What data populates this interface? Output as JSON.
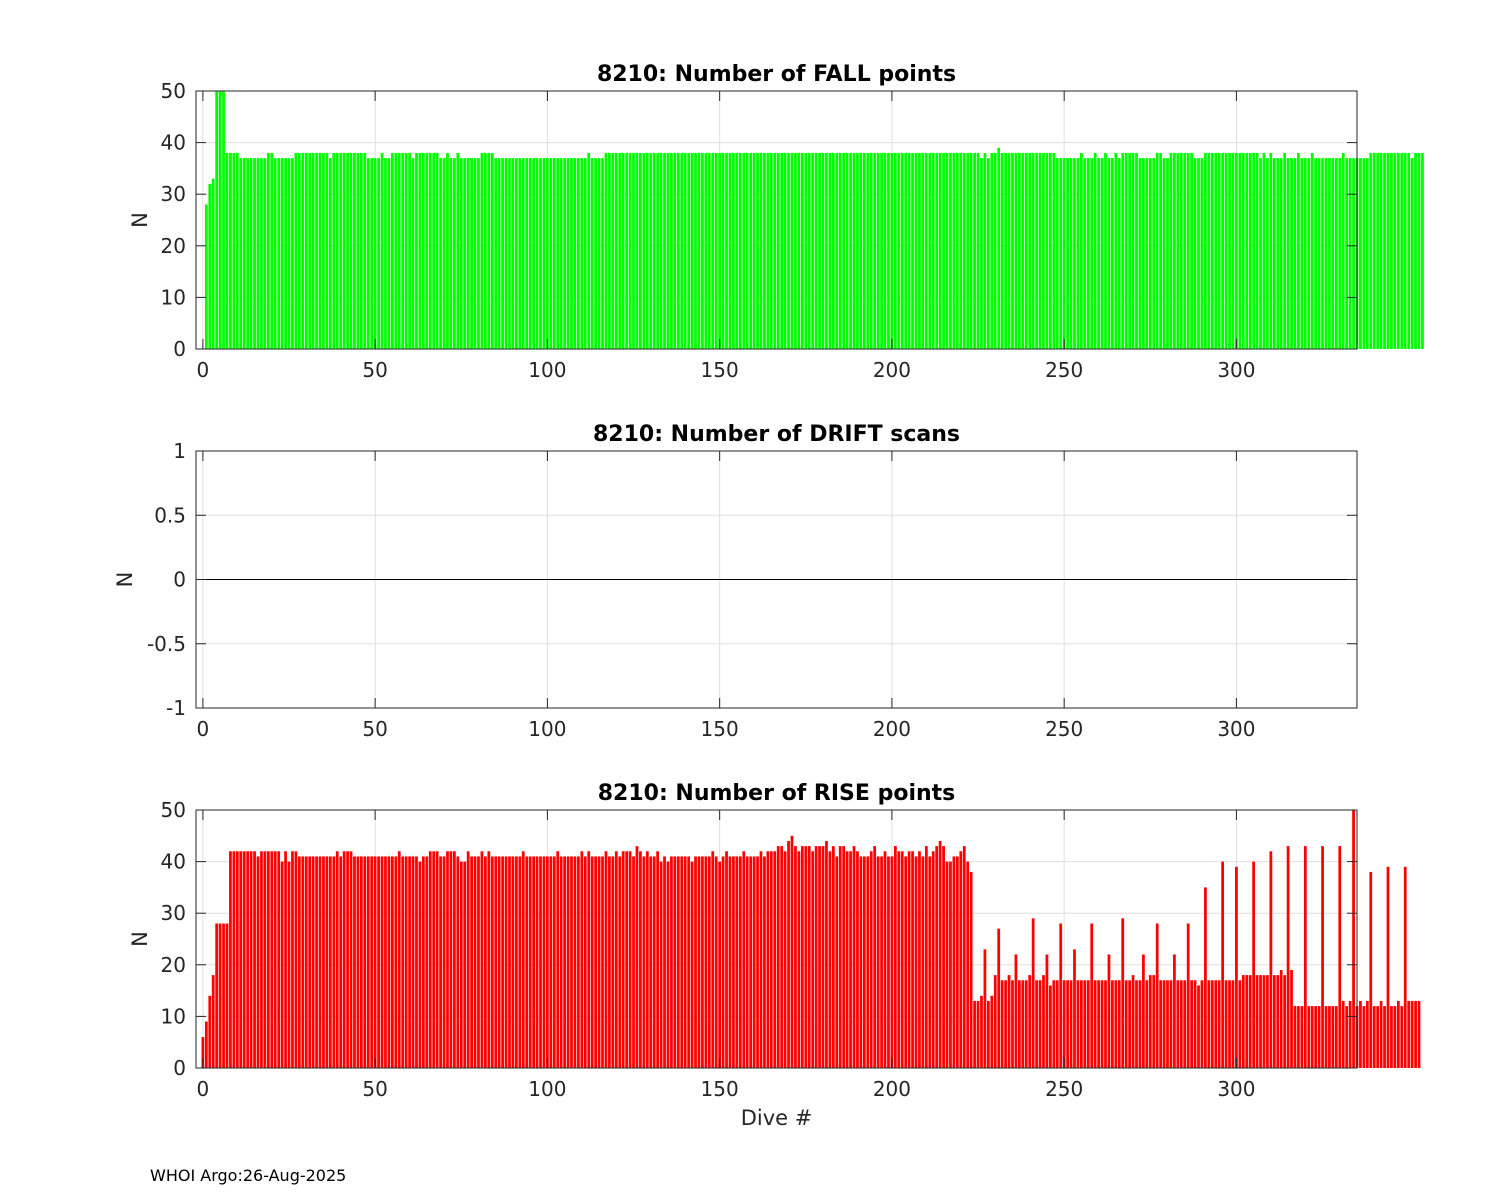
{
  "footer": "WHOI Argo:26-Aug-2025",
  "chart_data": [
    {
      "type": "bar",
      "title": "8210: Number of FALL points",
      "xlabel": "",
      "ylabel": "N",
      "xlim": [
        -2,
        335
      ],
      "ylim": [
        0,
        50
      ],
      "xticks": [
        0,
        50,
        100,
        150,
        200,
        250,
        300
      ],
      "yticks": [
        0,
        10,
        20,
        30,
        40,
        50
      ],
      "color": "#00ff00",
      "x_start": 1,
      "values": [
        28,
        32,
        33,
        50,
        50,
        50,
        38,
        38,
        38,
        38,
        37,
        37,
        37,
        37,
        37,
        37,
        37,
        37,
        38,
        38,
        37,
        37,
        37,
        37,
        37,
        37,
        38,
        38,
        38,
        38,
        38,
        38,
        38,
        38,
        38,
        38,
        37,
        38,
        38,
        38,
        38,
        38,
        38,
        38,
        38,
        38,
        38,
        37,
        37,
        37,
        37,
        38,
        37,
        37,
        38,
        38,
        38,
        38,
        38,
        38,
        37,
        38,
        38,
        38,
        38,
        38,
        38,
        38,
        37,
        37,
        38,
        37,
        37,
        38,
        37,
        37,
        37,
        37,
        37,
        37,
        38,
        38,
        38,
        38,
        37,
        37,
        37,
        37,
        37,
        37,
        37,
        37,
        37,
        37,
        37,
        37,
        37,
        37,
        37,
        37,
        37,
        37,
        37,
        37,
        37,
        37,
        37,
        37,
        37,
        37,
        37,
        38,
        37,
        37,
        37,
        37,
        38,
        38,
        38,
        38,
        38,
        38,
        38,
        38,
        38,
        38,
        38,
        38,
        38,
        38,
        38,
        38,
        38,
        38,
        38,
        38,
        38,
        38,
        38,
        38,
        38,
        38,
        38,
        38,
        38,
        38,
        38,
        38,
        38,
        38,
        38,
        38,
        38,
        38,
        38,
        38,
        38,
        38,
        38,
        38,
        38,
        38,
        38,
        38,
        38,
        38,
        38,
        38,
        38,
        38,
        38,
        38,
        38,
        38,
        38,
        38,
        38,
        38,
        38,
        38,
        38,
        38,
        38,
        38,
        38,
        38,
        38,
        38,
        38,
        38,
        38,
        38,
        38,
        38,
        38,
        38,
        38,
        38,
        38,
        38,
        38,
        38,
        38,
        38,
        38,
        38,
        38,
        38,
        38,
        38,
        38,
        38,
        38,
        38,
        38,
        38,
        38,
        38,
        38,
        38,
        38,
        38,
        38,
        38,
        38,
        37,
        38,
        37,
        38,
        38,
        39,
        38,
        38,
        38,
        38,
        38,
        38,
        38,
        38,
        38,
        38,
        38,
        38,
        38,
        38,
        38,
        38,
        37,
        37,
        37,
        37,
        37,
        37,
        37,
        38,
        37,
        37,
        37,
        38,
        37,
        37,
        38,
        37,
        37,
        38,
        37,
        38,
        38,
        38,
        38,
        38,
        37,
        37,
        37,
        37,
        37,
        38,
        38,
        37,
        37,
        38,
        38,
        38,
        38,
        38,
        38,
        38,
        37,
        37,
        37,
        38,
        38,
        38,
        38,
        38,
        38,
        38,
        38,
        38,
        38,
        38,
        38,
        38,
        38,
        38,
        38,
        37,
        38,
        37,
        38,
        37,
        37,
        37,
        38,
        37,
        37,
        37,
        38,
        37,
        37,
        37,
        38,
        37,
        37,
        37,
        37,
        37,
        37,
        37,
        37,
        38,
        37,
        37,
        37,
        37,
        37,
        37,
        37,
        38,
        38,
        38,
        38,
        38,
        38,
        38,
        38,
        38,
        38,
        38,
        38,
        37,
        38,
        38,
        38
      ]
    },
    {
      "type": "bar",
      "title": "8210: Number of DRIFT scans",
      "xlabel": "",
      "ylabel": "N",
      "xlim": [
        -2,
        335
      ],
      "ylim": [
        -1,
        1
      ],
      "xticks": [
        0,
        50,
        100,
        150,
        200,
        250,
        300
      ],
      "yticks": [
        -1,
        -0.5,
        0,
        0.5,
        1
      ],
      "ytick_labels": [
        "-1",
        "-0.5",
        "0",
        "0.5",
        "1"
      ],
      "zero_line": true,
      "values": []
    },
    {
      "type": "bar",
      "title": "8210: Number of RISE points",
      "xlabel": "Dive #",
      "ylabel": "N",
      "xlim": [
        -2,
        335
      ],
      "ylim": [
        0,
        50
      ],
      "xticks": [
        0,
        50,
        100,
        150,
        200,
        250,
        300
      ],
      "yticks": [
        0,
        10,
        20,
        30,
        40,
        50
      ],
      "color": "#ff0000",
      "x_start": 0,
      "values": [
        6,
        9,
        14,
        18,
        28,
        28,
        28,
        28,
        42,
        42,
        42,
        42,
        42,
        42,
        42,
        42,
        41,
        42,
        42,
        42,
        42,
        42,
        42,
        40,
        42,
        40,
        42,
        42,
        41,
        41,
        41,
        41,
        41,
        41,
        41,
        41,
        41,
        41,
        41,
        42,
        41,
        42,
        42,
        42,
        41,
        41,
        41,
        41,
        41,
        41,
        41,
        41,
        41,
        41,
        41,
        41,
        41,
        42,
        41,
        41,
        41,
        41,
        41,
        40,
        41,
        41,
        42,
        42,
        42,
        41,
        41,
        42,
        42,
        42,
        41,
        40,
        40,
        42,
        41,
        41,
        41,
        42,
        41,
        42,
        41,
        41,
        41,
        41,
        41,
        41,
        41,
        41,
        41,
        42,
        41,
        41,
        41,
        41,
        41,
        41,
        41,
        41,
        41,
        42,
        41,
        41,
        41,
        41,
        41,
        41,
        42,
        41,
        42,
        41,
        41,
        41,
        41,
        42,
        41,
        41,
        42,
        41,
        42,
        42,
        42,
        41,
        43,
        42,
        41,
        42,
        41,
        41,
        42,
        40,
        41,
        40,
        41,
        41,
        41,
        41,
        41,
        41,
        40,
        41,
        41,
        41,
        41,
        41,
        42,
        41,
        40,
        41,
        42,
        41,
        41,
        41,
        41,
        42,
        41,
        41,
        41,
        41,
        42,
        41,
        42,
        42,
        42,
        43,
        43,
        42,
        44,
        45,
        43,
        42,
        43,
        43,
        43,
        42,
        43,
        43,
        43,
        44,
        42,
        43,
        41,
        43,
        43,
        42,
        42,
        43,
        42,
        41,
        41,
        41,
        42,
        43,
        41,
        41,
        42,
        41,
        41,
        43,
        42,
        42,
        41,
        42,
        42,
        41,
        42,
        41,
        43,
        41,
        42,
        43,
        44,
        43,
        40,
        40,
        41,
        41,
        42,
        43,
        40,
        38,
        13,
        13,
        14,
        23,
        13,
        14,
        18,
        27,
        17,
        17,
        18,
        17,
        22,
        17,
        17,
        17,
        18,
        29,
        17,
        17,
        18,
        22,
        16,
        17,
        17,
        28,
        17,
        17,
        17,
        23,
        17,
        17,
        17,
        17,
        28,
        17,
        17,
        17,
        17,
        22,
        17,
        17,
        17,
        29,
        17,
        17,
        18,
        17,
        17,
        22,
        17,
        18,
        18,
        28,
        17,
        17,
        17,
        17,
        22,
        17,
        17,
        17,
        28,
        17,
        17,
        16,
        17,
        35,
        17,
        17,
        17,
        17,
        40,
        17,
        17,
        17,
        39,
        17,
        18,
        18,
        18,
        40,
        18,
        18,
        18,
        18,
        42,
        18,
        18,
        19,
        18,
        43,
        19,
        12,
        12,
        12,
        43,
        12,
        12,
        12,
        12,
        43,
        12,
        12,
        12,
        12,
        43,
        13,
        12,
        13,
        50,
        12,
        13,
        12,
        13,
        38,
        12,
        12,
        13,
        12,
        39,
        12,
        12,
        13,
        12,
        39,
        13,
        13,
        13,
        13
      ]
    }
  ]
}
